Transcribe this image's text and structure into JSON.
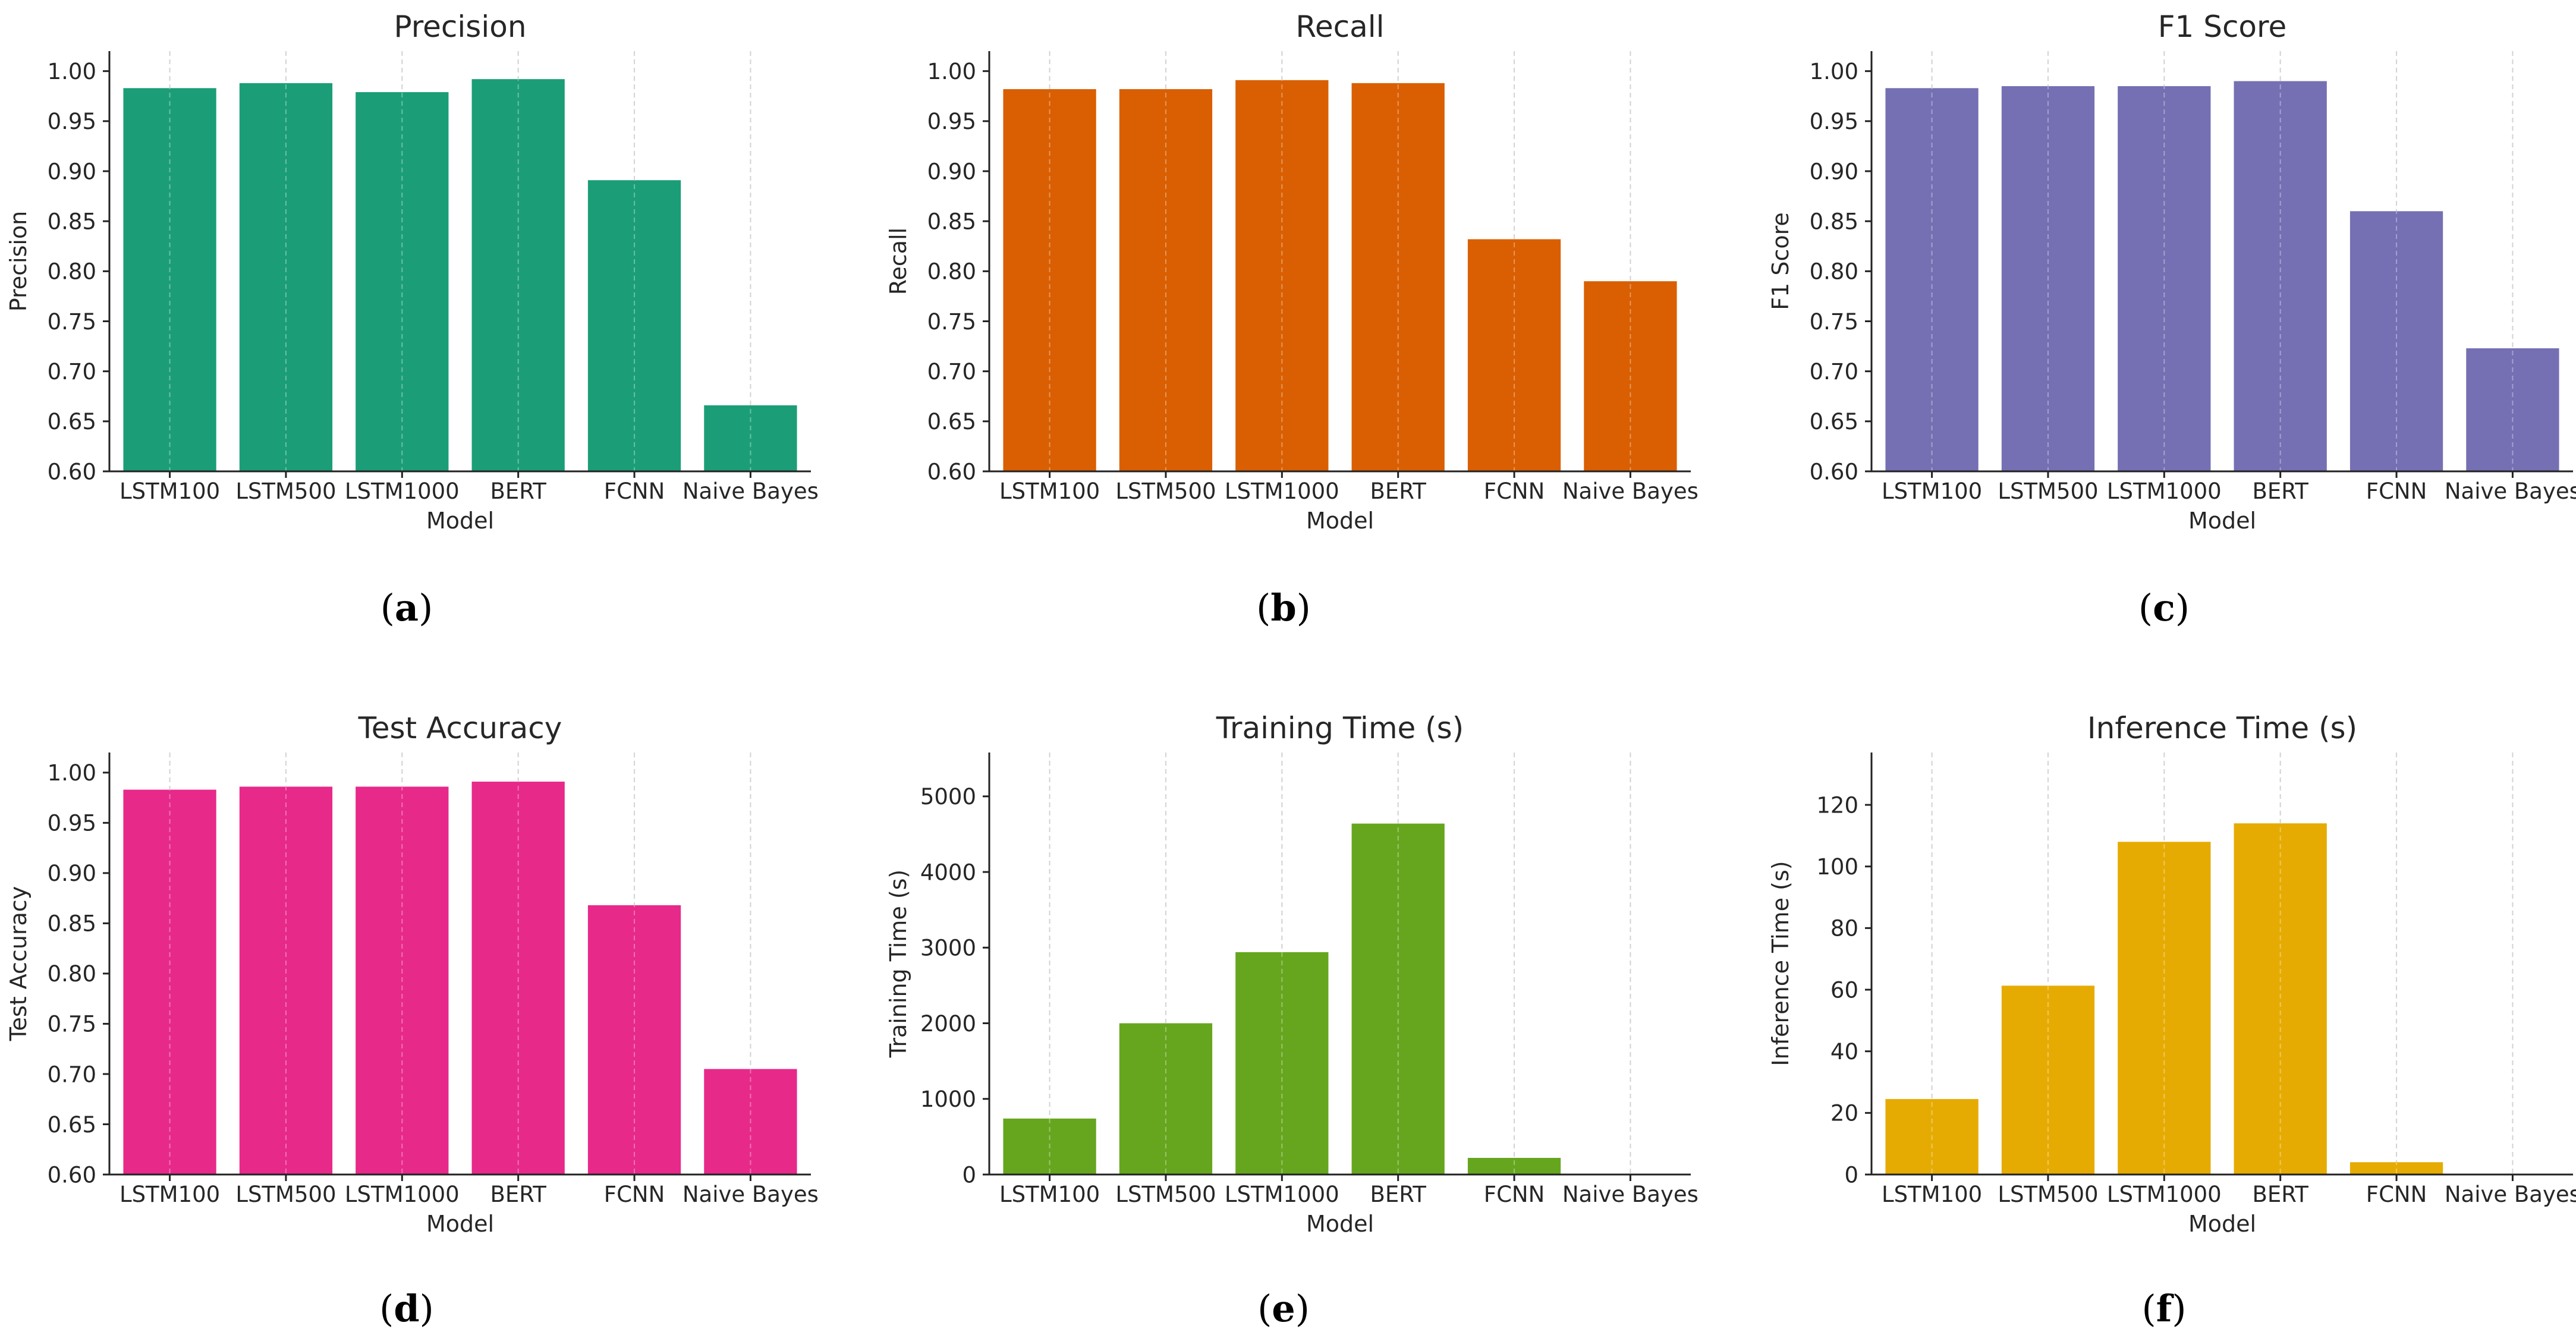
{
  "figure": {
    "models": [
      "LSTM100",
      "LSTM500",
      "LSTM1000",
      "BERT",
      "FCNN",
      "Naive Bayes"
    ],
    "x_label": "Model"
  },
  "chart_data": [
    {
      "id": "precision",
      "panel_label": "(a)",
      "type": "bar",
      "title": "Precision",
      "xlabel": "Model",
      "ylabel": "Precision",
      "categories": [
        "LSTM100",
        "LSTM500",
        "LSTM1000",
        "BERT",
        "FCNN",
        "Naive Bayes"
      ],
      "values": [
        0.983,
        0.988,
        0.979,
        0.992,
        0.891,
        0.666
      ],
      "ylim": [
        0.6,
        1.02
      ],
      "yticks": [
        0.6,
        0.65,
        0.7,
        0.75,
        0.8,
        0.85,
        0.9,
        0.95,
        1.0
      ],
      "tick_decimals": 2,
      "color": "#1b9e77",
      "grid": "x"
    },
    {
      "id": "recall",
      "panel_label": "(b)",
      "type": "bar",
      "title": "Recall",
      "xlabel": "Model",
      "ylabel": "Recall",
      "categories": [
        "LSTM100",
        "LSTM500",
        "LSTM1000",
        "BERT",
        "FCNN",
        "Naive Bayes"
      ],
      "values": [
        0.982,
        0.982,
        0.991,
        0.988,
        0.832,
        0.79
      ],
      "ylim": [
        0.6,
        1.02
      ],
      "yticks": [
        0.6,
        0.65,
        0.7,
        0.75,
        0.8,
        0.85,
        0.9,
        0.95,
        1.0
      ],
      "tick_decimals": 2,
      "color": "#d95f02",
      "grid": "x"
    },
    {
      "id": "f1",
      "panel_label": "(c)",
      "type": "bar",
      "title": "F1 Score",
      "xlabel": "Model",
      "ylabel": "F1 Score",
      "categories": [
        "LSTM100",
        "LSTM500",
        "LSTM1000",
        "BERT",
        "FCNN",
        "Naive Bayes"
      ],
      "values": [
        0.983,
        0.985,
        0.985,
        0.99,
        0.86,
        0.723
      ],
      "ylim": [
        0.6,
        1.02
      ],
      "yticks": [
        0.6,
        0.65,
        0.7,
        0.75,
        0.8,
        0.85,
        0.9,
        0.95,
        1.0
      ],
      "tick_decimals": 2,
      "color": "#7570b3",
      "grid": "x"
    },
    {
      "id": "accuracy",
      "panel_label": "(d)",
      "type": "bar",
      "title": "Test Accuracy",
      "xlabel": "Model",
      "ylabel": "Test Accuracy",
      "categories": [
        "LSTM100",
        "LSTM500",
        "LSTM1000",
        "BERT",
        "FCNN",
        "Naive Bayes"
      ],
      "values": [
        0.983,
        0.986,
        0.986,
        0.991,
        0.868,
        0.705
      ],
      "ylim": [
        0.6,
        1.02
      ],
      "yticks": [
        0.6,
        0.65,
        0.7,
        0.75,
        0.8,
        0.85,
        0.9,
        0.95,
        1.0
      ],
      "tick_decimals": 2,
      "color": "#e7298a",
      "grid": "x"
    },
    {
      "id": "training_time",
      "panel_label": "(e)",
      "type": "bar",
      "title": "Training Time (s)",
      "xlabel": "Model",
      "ylabel": "Training Time (s)",
      "categories": [
        "LSTM100",
        "LSTM500",
        "LSTM1000",
        "BERT",
        "FCNN",
        "Naive Bayes"
      ],
      "values": [
        740,
        2000,
        2940,
        4640,
        220,
        2
      ],
      "ylim": [
        0,
        5580
      ],
      "yticks": [
        0,
        1000,
        2000,
        3000,
        4000,
        5000
      ],
      "tick_decimals": 0,
      "color": "#66a61e",
      "grid": "x"
    },
    {
      "id": "inference_time",
      "panel_label": "(f)",
      "type": "bar",
      "title": "Inference Time (s)",
      "xlabel": "Model",
      "ylabel": "Inference Time (s)",
      "categories": [
        "LSTM100",
        "LSTM500",
        "LSTM1000",
        "BERT",
        "FCNN",
        "Naive Bayes"
      ],
      "values": [
        24.5,
        61.3,
        108,
        114,
        4,
        0.1
      ],
      "ylim": [
        0,
        137
      ],
      "yticks": [
        0,
        20,
        40,
        60,
        80,
        100,
        120
      ],
      "tick_decimals": 0,
      "color": "#e6ab02",
      "grid": "x"
    }
  ]
}
